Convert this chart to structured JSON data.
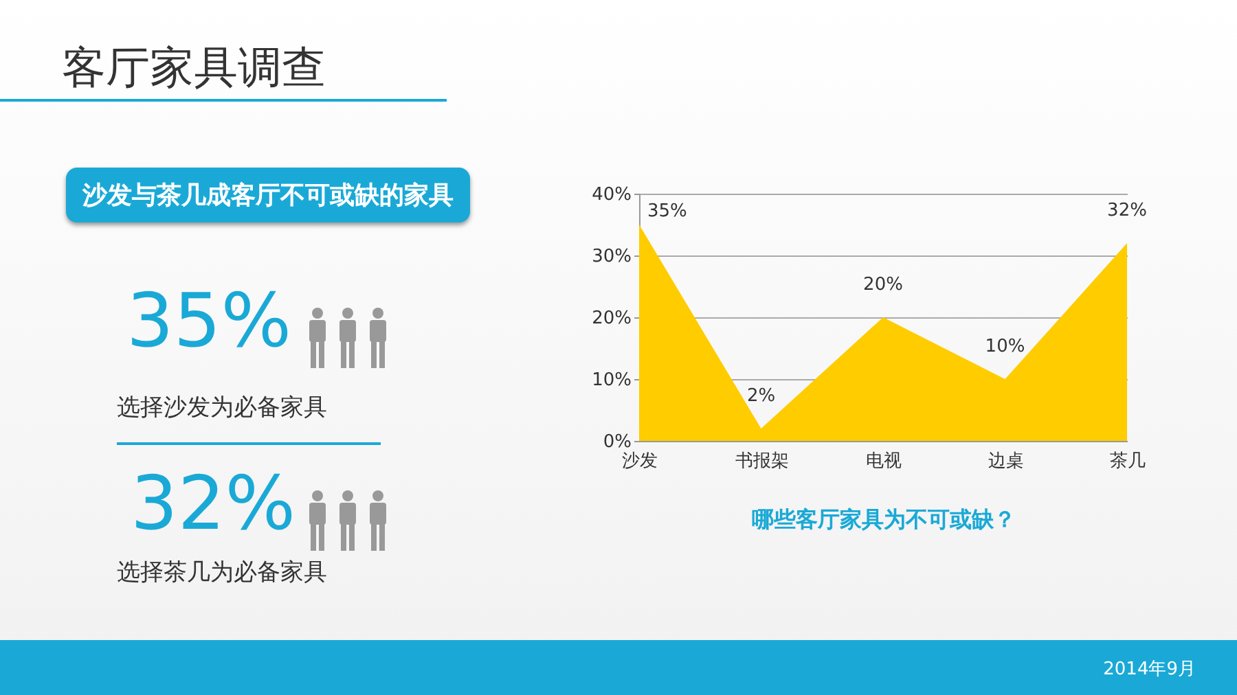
{
  "chart_data": {
    "type": "area",
    "title": "客厅家具调查",
    "subtitle": "沙发与茶几成客厅不可或缺的家具",
    "xlabel": "哪些客厅家具为不可或缺？",
    "categories": [
      "沙发",
      "书报架",
      "电视",
      "边桌",
      "茶几"
    ],
    "values": [
      35,
      2,
      20,
      10,
      32
    ],
    "value_labels": [
      "35%",
      "2%",
      "20%",
      "10%",
      "32%"
    ],
    "color": "#ffcc00",
    "ylim": [
      0,
      40
    ],
    "yticks": [
      {
        "value": 0,
        "label": "0%"
      },
      {
        "value": 10,
        "label": "10%"
      },
      {
        "value": 20,
        "label": "20%"
      },
      {
        "value": 30,
        "label": "30%"
      },
      {
        "value": 40,
        "label": "40%"
      }
    ],
    "grid": "y",
    "annotations": [
      "35%",
      "选择沙发为必备家具",
      "32%",
      "选择茶几为必备家具",
      "2014年9月"
    ]
  }
}
